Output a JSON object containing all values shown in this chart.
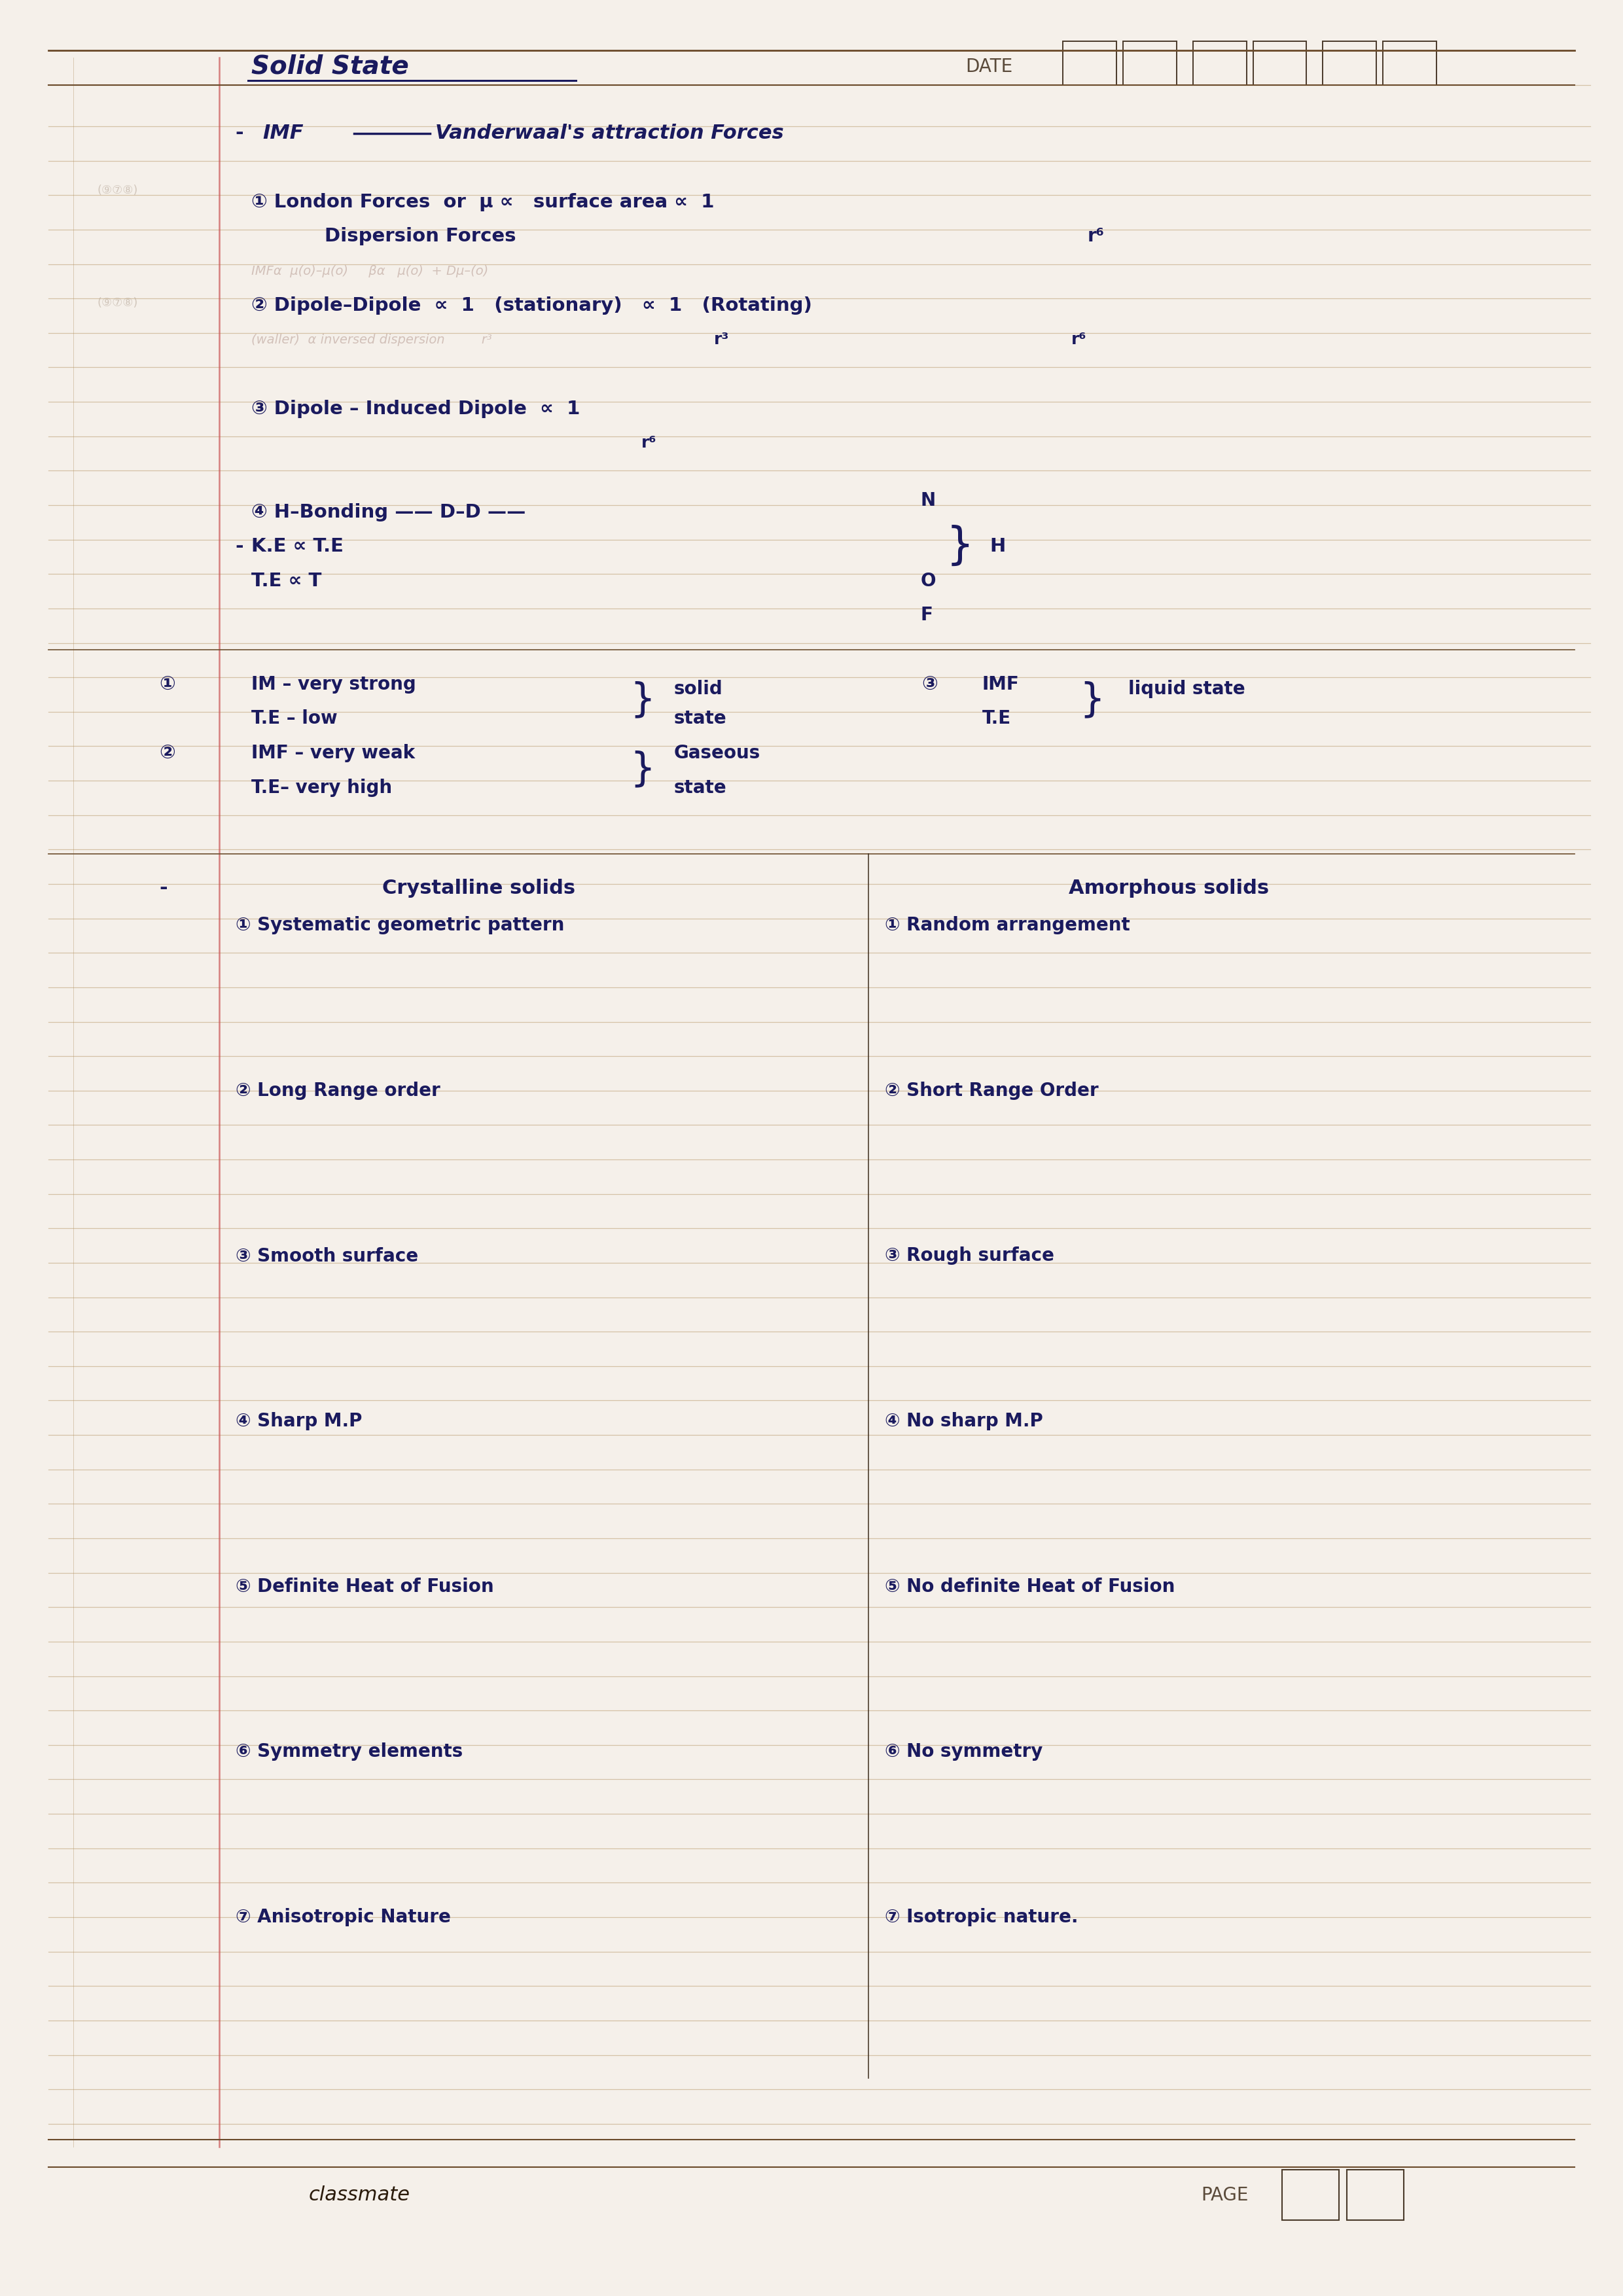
{
  "bg_color": "#f5f0ea",
  "page_color": "#faf7f2",
  "title": "Solid State",
  "date_label": "DATE",
  "page_label": "PAGE",
  "classmate_label": "classmate",
  "ink_color": "#1a1a5e",
  "faded_color": "#c8b0b0",
  "line_color": "#c4a882",
  "margin_line_color": "#b09060",
  "ruled_lines": [
    0.963,
    0.945,
    0.93,
    0.915,
    0.9,
    0.885,
    0.87,
    0.855,
    0.84,
    0.825,
    0.81,
    0.795,
    0.78,
    0.765,
    0.75,
    0.735,
    0.72,
    0.705,
    0.69,
    0.675,
    0.66,
    0.645,
    0.63,
    0.615,
    0.6,
    0.585,
    0.57,
    0.555,
    0.54,
    0.525,
    0.51,
    0.495,
    0.48,
    0.465,
    0.45,
    0.435,
    0.42,
    0.405,
    0.39,
    0.375,
    0.36,
    0.345,
    0.33,
    0.315,
    0.3,
    0.285,
    0.27,
    0.255,
    0.24,
    0.225,
    0.21,
    0.195,
    0.18,
    0.165,
    0.15,
    0.135,
    0.12,
    0.105,
    0.09,
    0.075
  ],
  "crystalline": [
    "① Systematic geometric pattern",
    "② Long Range order",
    "③ Smooth surface",
    "④ Sharp M.P",
    "⑤ Definite Heat of Fusion",
    "⑥ Symmetry elements",
    "⑦ Anisotropic Nature"
  ],
  "amorphous": [
    "① Random arrangement",
    "② Short Range Order",
    "③ Rough surface",
    "④ No sharp M.P",
    "⑤ No definite Heat of Fusion",
    "⑥ No symmetry",
    "⑦ Isotropic nature."
  ]
}
